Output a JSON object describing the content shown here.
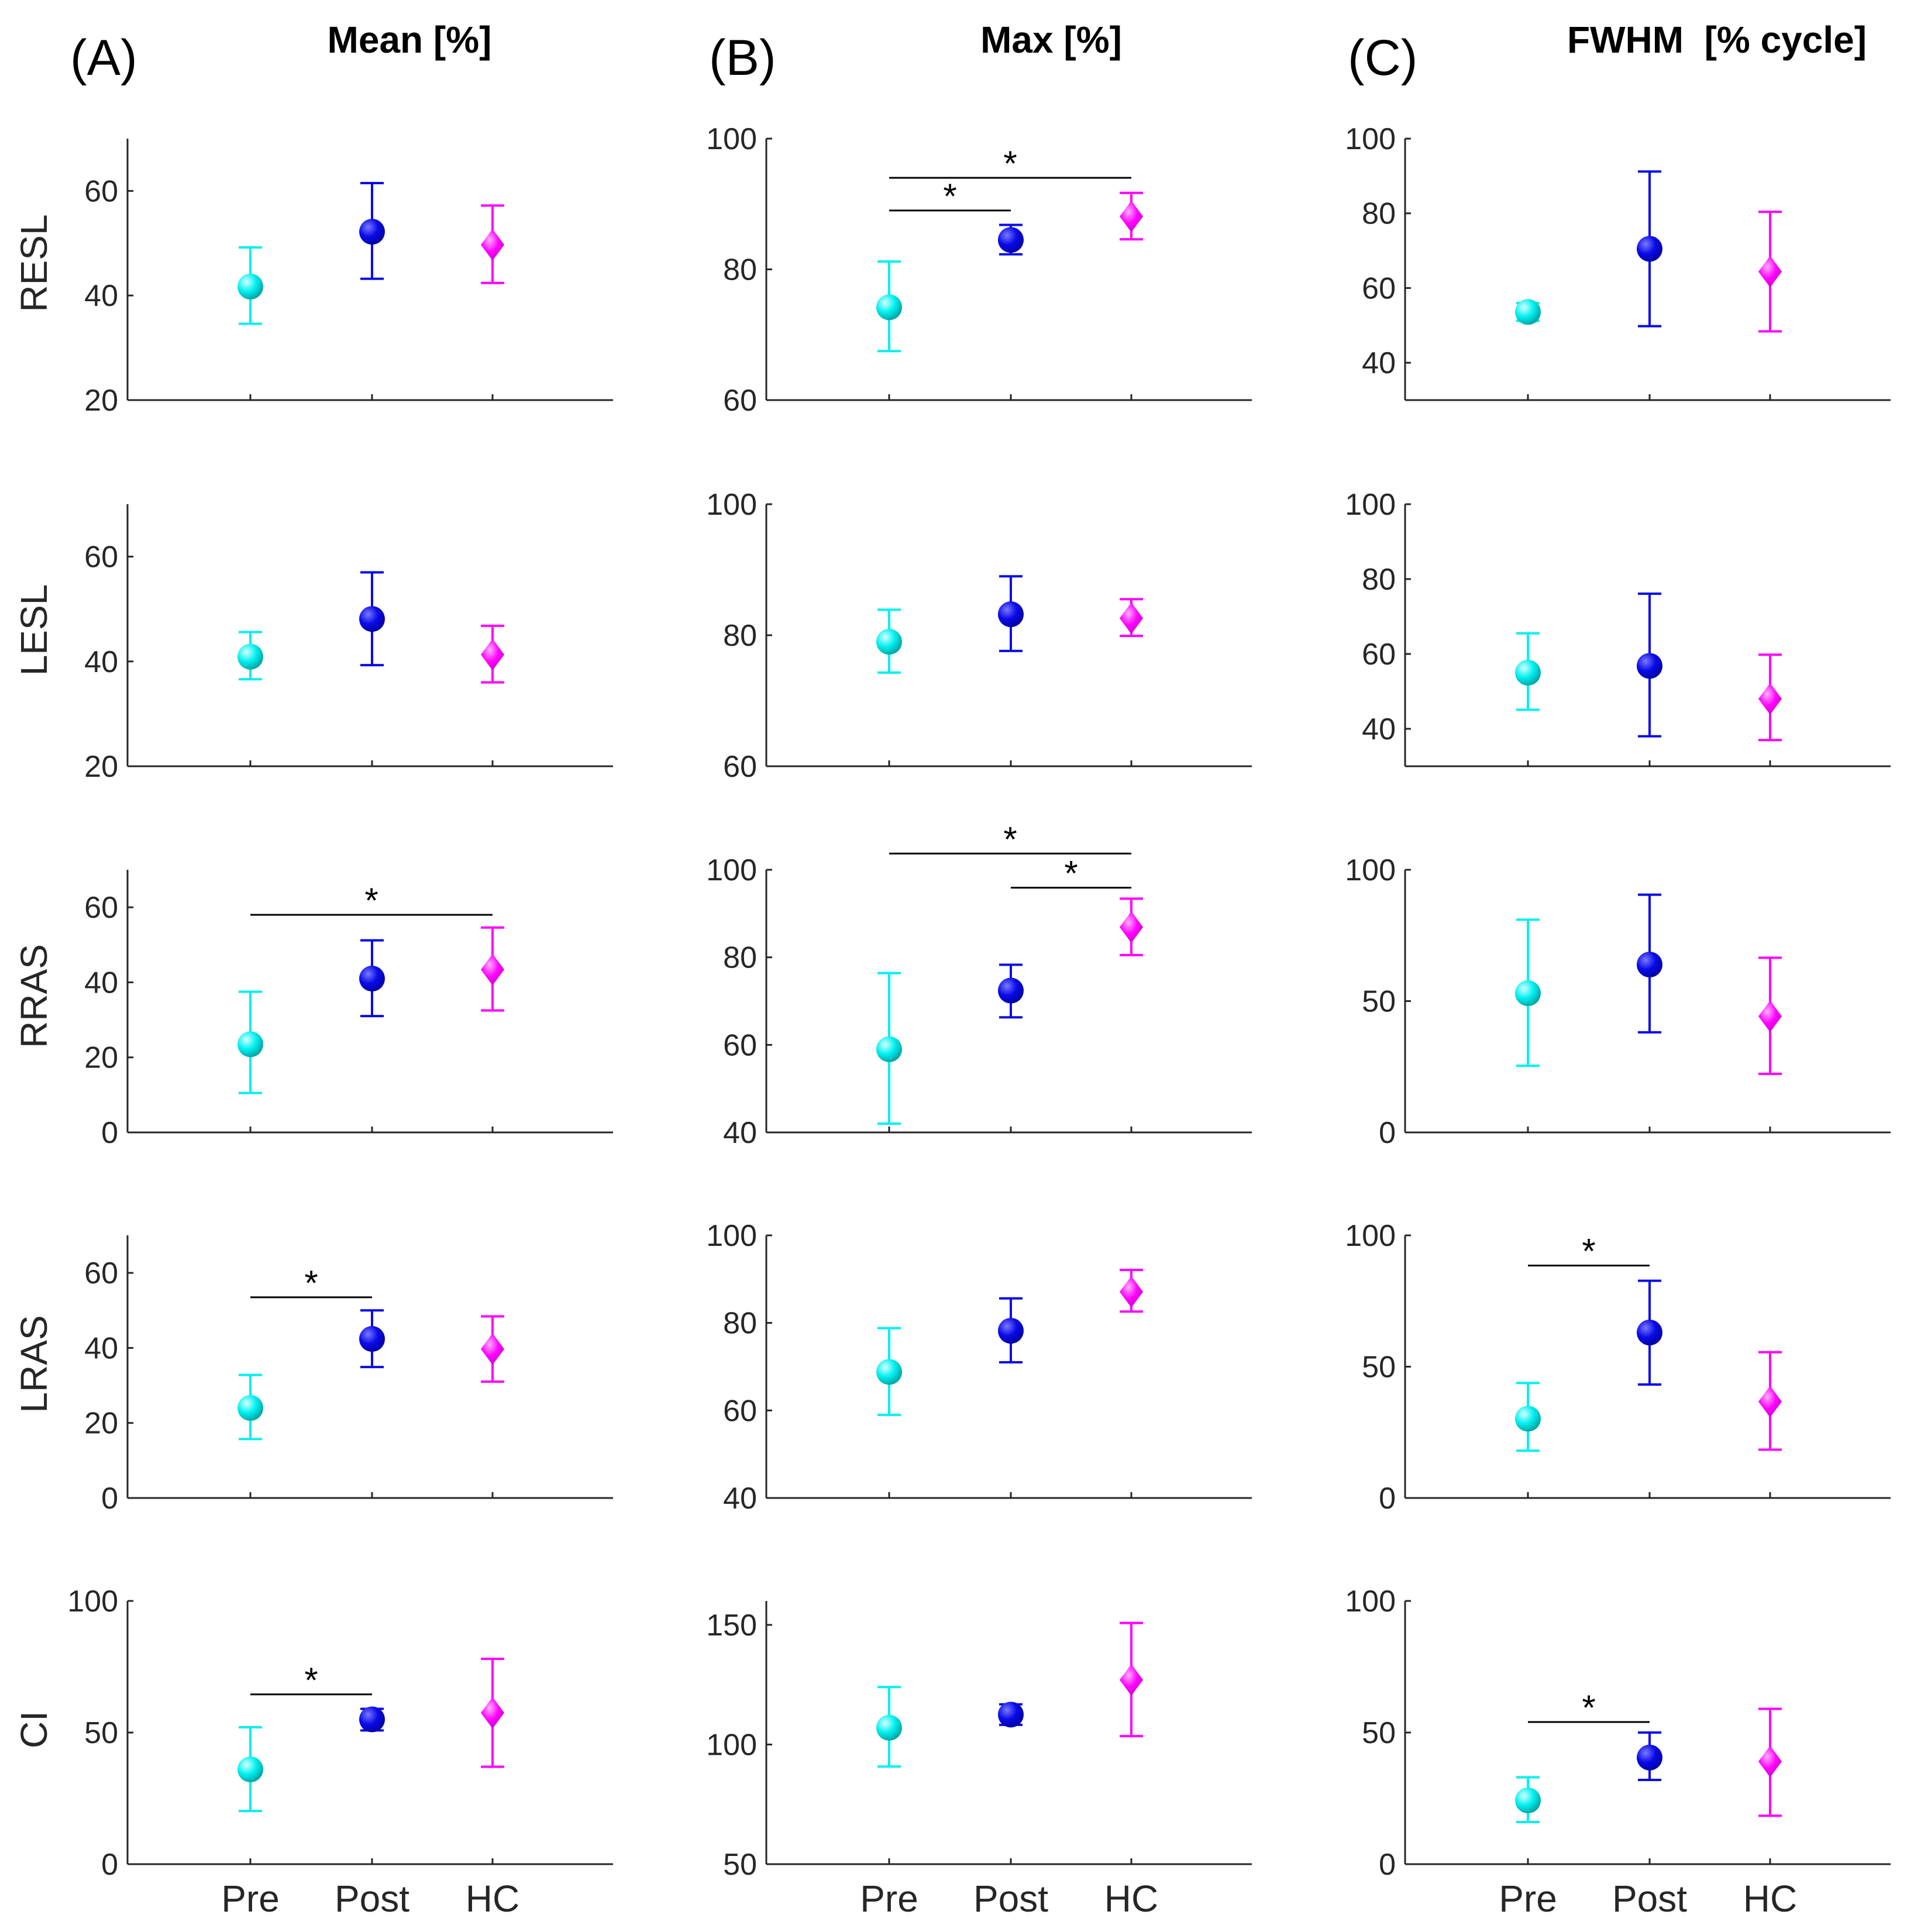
{
  "figure": {
    "column_labels": [
      "(A)",
      "(B)",
      "(C)"
    ],
    "column_titles": [
      "Mean [%]",
      "Max [%]",
      "FWHM  [% cycle]"
    ],
    "row_labels": [
      "RESL",
      "LESL",
      "RRAS",
      "LRAS",
      "CI"
    ],
    "group_labels": [
      "Pre",
      "Post",
      "HC"
    ]
  },
  "colors": {
    "Pre": "#00f0f0",
    "Post": "#0a0ae8",
    "HC": "#ff00ff",
    "axis": "#262626"
  },
  "chart_data": [
    {
      "type": "scatter",
      "row": "RESL",
      "column": "Mean [%]",
      "ylim": [
        20,
        70
      ],
      "yticks": [
        20,
        40,
        60
      ],
      "series": [
        {
          "name": "Pre",
          "mean": 41.7,
          "lower": 34.6,
          "upper": 49.2
        },
        {
          "name": "Post",
          "mean": 52.2,
          "lower": 43.2,
          "upper": 61.5
        },
        {
          "name": "HC",
          "mean": 49.7,
          "lower": 42.4,
          "upper": 57.2
        }
      ],
      "significance": []
    },
    {
      "type": "scatter",
      "row": "RESL",
      "column": "Max [%]",
      "ylim": [
        60,
        100
      ],
      "yticks": [
        60,
        80,
        100
      ],
      "series": [
        {
          "name": "Pre",
          "mean": 74.2,
          "lower": 67.5,
          "upper": 81.2
        },
        {
          "name": "Post",
          "mean": 84.5,
          "lower": 82.3,
          "upper": 86.8
        },
        {
          "name": "HC",
          "mean": 88.1,
          "lower": 84.6,
          "upper": 91.7
        }
      ],
      "significance": [
        {
          "from": "Pre",
          "to": "Post",
          "level": 89,
          "label": "*"
        },
        {
          "from": "Pre",
          "to": "HC",
          "level": 94,
          "label": "*"
        }
      ]
    },
    {
      "type": "scatter",
      "row": "RESL",
      "column": "FWHM  [% cycle]",
      "ylim": [
        30,
        100
      ],
      "yticks": [
        40,
        60,
        80,
        100
      ],
      "series": [
        {
          "name": "Pre",
          "mean": 53.6,
          "lower": 51.2,
          "upper": 56.0
        },
        {
          "name": "Post",
          "mean": 70.5,
          "lower": 49.8,
          "upper": 91.2
        },
        {
          "name": "HC",
          "mean": 64.4,
          "lower": 48.4,
          "upper": 80.4
        }
      ],
      "significance": []
    },
    {
      "type": "scatter",
      "row": "LESL",
      "column": "Mean [%]",
      "ylim": [
        20,
        70
      ],
      "yticks": [
        20,
        40,
        60
      ],
      "series": [
        {
          "name": "Pre",
          "mean": 40.9,
          "lower": 36.6,
          "upper": 45.6
        },
        {
          "name": "Post",
          "mean": 48.1,
          "lower": 39.3,
          "upper": 57.0
        },
        {
          "name": "HC",
          "mean": 41.3,
          "lower": 36.0,
          "upper": 46.8
        }
      ],
      "significance": []
    },
    {
      "type": "scatter",
      "row": "LESL",
      "column": "Max [%]",
      "ylim": [
        60,
        100
      ],
      "yticks": [
        60,
        80,
        100
      ],
      "series": [
        {
          "name": "Pre",
          "mean": 79.0,
          "lower": 74.3,
          "upper": 83.9
        },
        {
          "name": "Post",
          "mean": 83.2,
          "lower": 77.6,
          "upper": 89.0
        },
        {
          "name": "HC",
          "mean": 82.6,
          "lower": 79.9,
          "upper": 85.5
        }
      ],
      "significance": []
    },
    {
      "type": "scatter",
      "row": "LESL",
      "column": "FWHM  [% cycle]",
      "ylim": [
        30,
        100
      ],
      "yticks": [
        40,
        60,
        80,
        100
      ],
      "series": [
        {
          "name": "Pre",
          "mean": 55.0,
          "lower": 45.1,
          "upper": 65.5
        },
        {
          "name": "Post",
          "mean": 56.8,
          "lower": 38.0,
          "upper": 76.1
        },
        {
          "name": "HC",
          "mean": 48.0,
          "lower": 37.0,
          "upper": 59.8
        }
      ],
      "significance": []
    },
    {
      "type": "scatter",
      "row": "RRAS",
      "column": "Mean [%]",
      "ylim": [
        0,
        70
      ],
      "yticks": [
        0,
        20,
        40,
        60
      ],
      "series": [
        {
          "name": "Pre",
          "mean": 23.5,
          "lower": 10.5,
          "upper": 37.5
        },
        {
          "name": "Post",
          "mean": 41.0,
          "lower": 31.0,
          "upper": 51.2
        },
        {
          "name": "HC",
          "mean": 43.4,
          "lower": 32.5,
          "upper": 54.6
        }
      ],
      "significance": [
        {
          "from": "Pre",
          "to": "HC",
          "level": 58,
          "label": "*"
        }
      ]
    },
    {
      "type": "scatter",
      "row": "RRAS",
      "column": "Max [%]",
      "ylim": [
        40,
        100
      ],
      "yticks": [
        40,
        60,
        80,
        100
      ],
      "series": [
        {
          "name": "Pre",
          "mean": 59.0,
          "lower": 42.0,
          "upper": 76.4
        },
        {
          "name": "Post",
          "mean": 72.4,
          "lower": 66.3,
          "upper": 78.3
        },
        {
          "name": "HC",
          "mean": 86.9,
          "lower": 80.5,
          "upper": 93.4
        }
      ],
      "significance": [
        {
          "from": "Post",
          "to": "HC",
          "level": 95.9,
          "label": "*"
        },
        {
          "from": "Pre",
          "to": "HC",
          "level": 103.7,
          "label": "*"
        }
      ]
    },
    {
      "type": "scatter",
      "row": "RRAS",
      "column": "FWHM  [% cycle]",
      "ylim": [
        0,
        100
      ],
      "yticks": [
        0,
        50,
        100
      ],
      "series": [
        {
          "name": "Pre",
          "mean": 53.0,
          "lower": 25.4,
          "upper": 81.0
        },
        {
          "name": "Post",
          "mean": 63.9,
          "lower": 38.1,
          "upper": 90.5
        },
        {
          "name": "HC",
          "mean": 44.2,
          "lower": 22.3,
          "upper": 66.5
        }
      ],
      "significance": []
    },
    {
      "type": "scatter",
      "row": "LRAS",
      "column": "Mean [%]",
      "ylim": [
        0,
        70
      ],
      "yticks": [
        0,
        20,
        40,
        60
      ],
      "series": [
        {
          "name": "Pre",
          "mean": 24.0,
          "lower": 15.7,
          "upper": 32.8
        },
        {
          "name": "Post",
          "mean": 42.4,
          "lower": 34.9,
          "upper": 50.0
        },
        {
          "name": "HC",
          "mean": 39.7,
          "lower": 31.0,
          "upper": 48.4
        }
      ],
      "significance": [
        {
          "from": "Pre",
          "to": "Post",
          "level": 53.5,
          "label": "*"
        }
      ]
    },
    {
      "type": "scatter",
      "row": "LRAS",
      "column": "Max [%]",
      "ylim": [
        40,
        100
      ],
      "yticks": [
        40,
        60,
        80,
        100
      ],
      "series": [
        {
          "name": "Pre",
          "mean": 68.8,
          "lower": 59.0,
          "upper": 78.8
        },
        {
          "name": "Post",
          "mean": 78.2,
          "lower": 71.0,
          "upper": 85.6
        },
        {
          "name": "HC",
          "mean": 87.1,
          "lower": 82.6,
          "upper": 92.1
        }
      ],
      "significance": []
    },
    {
      "type": "scatter",
      "row": "LRAS",
      "column": "FWHM  [% cycle]",
      "ylim": [
        0,
        100
      ],
      "yticks": [
        0,
        50,
        100
      ],
      "series": [
        {
          "name": "Pre",
          "mean": 30.2,
          "lower": 18.0,
          "upper": 43.8
        },
        {
          "name": "Post",
          "mean": 63.0,
          "lower": 43.2,
          "upper": 82.7
        },
        {
          "name": "HC",
          "mean": 36.7,
          "lower": 18.4,
          "upper": 55.5
        }
      ],
      "significance": [
        {
          "from": "Pre",
          "to": "Post",
          "level": 88.5,
          "label": "*"
        }
      ]
    },
    {
      "type": "scatter",
      "row": "CI",
      "column": "Mean [%]",
      "ylim": [
        0,
        100
      ],
      "yticks": [
        0,
        50,
        100
      ],
      "series": [
        {
          "name": "Pre",
          "mean": 36.0,
          "lower": 20.2,
          "upper": 52.0
        },
        {
          "name": "Post",
          "mean": 55.0,
          "lower": 50.8,
          "upper": 59.0
        },
        {
          "name": "HC",
          "mean": 57.5,
          "lower": 37.0,
          "upper": 78.0
        }
      ],
      "significance": [
        {
          "from": "Pre",
          "to": "Post",
          "level": 64.5,
          "label": "*"
        }
      ]
    },
    {
      "type": "scatter",
      "row": "CI",
      "column": "Max [%]",
      "ylim": [
        50,
        160
      ],
      "yticks": [
        50,
        100,
        150
      ],
      "series": [
        {
          "name": "Pre",
          "mean": 107.0,
          "lower": 90.8,
          "upper": 124.0
        },
        {
          "name": "Post",
          "mean": 112.5,
          "lower": 108.2,
          "upper": 116.8
        },
        {
          "name": "HC",
          "mean": 127.0,
          "lower": 103.5,
          "upper": 150.8
        }
      ],
      "significance": []
    },
    {
      "type": "scatter",
      "row": "CI",
      "column": "FWHM  [% cycle]",
      "ylim": [
        0,
        100
      ],
      "yticks": [
        0,
        50,
        100
      ],
      "series": [
        {
          "name": "Pre",
          "mean": 24.2,
          "lower": 16.0,
          "upper": 33.0
        },
        {
          "name": "Post",
          "mean": 40.5,
          "lower": 32.0,
          "upper": 50.0
        },
        {
          "name": "HC",
          "mean": 39.0,
          "lower": 18.4,
          "upper": 59.0
        }
      ],
      "significance": [
        {
          "from": "Pre",
          "to": "Post",
          "level": 54,
          "label": "*"
        }
      ]
    }
  ]
}
